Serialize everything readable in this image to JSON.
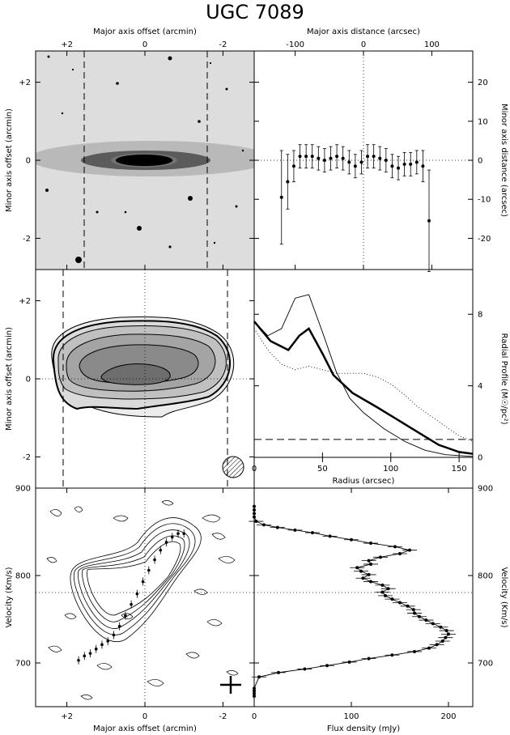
{
  "title": "UGC 7089",
  "chart_data": [
    {
      "id": "optical-image",
      "type": "image",
      "xlabel_top": "Major axis offset (arcmin)",
      "ylabel": "Minor axis offset (arcmin)",
      "xlim": [
        2.8,
        -2.8
      ],
      "ylim": [
        -2.8,
        2.8
      ],
      "x_ticks": [
        "+2",
        "0",
        "-2"
      ],
      "y_ticks": [
        "+2",
        "0",
        "-2"
      ],
      "slit_lines": [
        1.75,
        -1.6
      ]
    },
    {
      "id": "centroid-offsets",
      "type": "scatter",
      "xlabel_top": "Major axis distance (arcsec)",
      "ylabel": "Minor axis distance (arcsec)",
      "xlim": [
        -160,
        160
      ],
      "ylim": [
        -28,
        28
      ],
      "x_ticks": [
        "-100",
        "0",
        "100"
      ],
      "y_ticks": [
        "20",
        "10",
        "0",
        "-10",
        "-20"
      ],
      "x": [
        -120,
        -111,
        -102,
        -93,
        -84,
        -75,
        -66,
        -57,
        -48,
        -39,
        -30,
        -21,
        -12,
        -3,
        6,
        15,
        24,
        33,
        42,
        51,
        60,
        69,
        78,
        87,
        96
      ],
      "y": [
        -9.5,
        -5.5,
        -1.5,
        1,
        1,
        1,
        0.5,
        0,
        0.5,
        1,
        0.5,
        -0.5,
        -1.5,
        -0.5,
        1,
        1,
        0.5,
        0,
        -1.5,
        -2,
        -1,
        -1,
        -0.5,
        -1.5,
        -15.5
      ],
      "yerr": [
        12,
        7,
        4,
        3,
        3,
        3,
        3,
        3,
        3,
        3,
        3,
        3,
        3,
        3,
        3,
        3,
        3,
        3,
        3,
        3,
        3,
        3,
        3,
        4,
        13
      ]
    },
    {
      "id": "hi-contours",
      "type": "contour",
      "ylabel": "Minor axis offset (arcmin)",
      "xlim": [
        2.8,
        -2.8
      ],
      "ylim": [
        -2.8,
        2.8
      ],
      "y_ticks": [
        "+2",
        "0",
        "-2"
      ],
      "slit_lines": [
        2.1,
        -2.1
      ]
    },
    {
      "id": "radial-profile",
      "type": "line",
      "xlabel": "Radius (arcsec)",
      "ylabel": "Radial Profile (M☉/pc²)",
      "xlim": [
        0,
        160
      ],
      "ylim": [
        0,
        10.5
      ],
      "x_ticks": [
        "0",
        "50",
        "100",
        "150"
      ],
      "y_ticks": [
        "8",
        "4",
        "0"
      ],
      "series": [
        {
          "style": "thick",
          "x": [
            0,
            12,
            25,
            33,
            40,
            50,
            58,
            72,
            90,
            105,
            120,
            135,
            150,
            160
          ],
          "y": [
            7.6,
            6.5,
            6.0,
            6.8,
            7.2,
            5.8,
            4.6,
            3.6,
            2.8,
            2.1,
            1.4,
            0.7,
            0.3,
            0.2
          ]
        },
        {
          "style": "thin",
          "x": [
            0,
            10,
            20,
            30,
            40,
            50,
            60,
            70,
            80,
            95,
            110,
            125,
            140,
            160
          ],
          "y": [
            7.6,
            6.8,
            7.2,
            8.9,
            9.1,
            7.0,
            4.8,
            3.3,
            2.5,
            1.6,
            0.9,
            0.4,
            0.15,
            0.05
          ]
        },
        {
          "style": "dotted",
          "x": [
            0,
            10,
            20,
            30,
            40,
            50,
            60,
            70,
            80,
            90,
            100,
            110,
            120,
            135,
            150,
            160
          ],
          "y": [
            7.2,
            6.0,
            5.2,
            4.9,
            5.1,
            4.9,
            4.7,
            4.7,
            4.7,
            4.5,
            4.1,
            3.5,
            2.8,
            2.0,
            1.2,
            0.9
          ]
        },
        {
          "style": "dashed",
          "x": [
            0,
            160
          ],
          "y": [
            1.0,
            1.0
          ]
        }
      ]
    },
    {
      "id": "position-velocity",
      "type": "contour",
      "xlabel": "Major axis offset (arcmin)",
      "ylabel": "Velocity (Km/s)",
      "xlim": [
        2.8,
        -2.8
      ],
      "ylim": [
        650,
        900
      ],
      "x_ticks": [
        "+2",
        "0",
        "-2"
      ],
      "y_ticks": [
        "900",
        "800",
        "700"
      ],
      "x": [
        1.7,
        1.55,
        1.4,
        1.25,
        1.1,
        0.95,
        0.8,
        0.65,
        0.5,
        0.35,
        0.2,
        0.05,
        -0.1,
        -0.25,
        -0.4,
        -0.55,
        -0.7,
        -0.85,
        -1.0
      ],
      "y": [
        703,
        708,
        711,
        716,
        721,
        725,
        732,
        742,
        754,
        767,
        779,
        793,
        806,
        818,
        829,
        838,
        844,
        848,
        848
      ],
      "reference_velocity": 781
    },
    {
      "id": "global-profile",
      "type": "line",
      "xlabel": "Flux density (mJy)",
      "ylabel": "Velocity (Km/s)",
      "xlim": [
        0,
        225
      ],
      "ylim": [
        650,
        900
      ],
      "x_ticks": [
        "0",
        "100",
        "200"
      ],
      "y_ticks": [
        "900",
        "800",
        "700"
      ],
      "x": [
        0,
        0,
        0,
        0,
        5,
        25,
        52,
        75,
        98,
        118,
        142,
        165,
        180,
        188,
        194,
        197,
        200,
        198,
        192,
        184,
        177,
        170,
        165,
        164,
        158,
        150,
        142,
        135,
        132,
        138,
        132,
        120,
        112,
        118,
        110,
        106,
        120,
        118,
        130,
        150,
        160,
        145,
        120,
        100,
        78,
        60,
        42,
        24,
        10,
        2,
        0,
        0,
        0,
        0
      ],
      "y": [
        662,
        665,
        668,
        671,
        684,
        689,
        693,
        697,
        701,
        705,
        709,
        713,
        717,
        721,
        725,
        729,
        733,
        737,
        741,
        745,
        749,
        753,
        757,
        761,
        765,
        769,
        773,
        777,
        781,
        785,
        789,
        793,
        797,
        801,
        805,
        809,
        813,
        817,
        821,
        825,
        829,
        833,
        837,
        841,
        845,
        849,
        852,
        855,
        858,
        862,
        867,
        871,
        875,
        879
      ]
    }
  ],
  "left_labels": {
    "top_xlabel": "Major axis offset (arcmin)",
    "right_top_xlabel": "Major axis distance (arcsec)",
    "beam_icon": "hatched-circle-icon",
    "cross_icon": "resolution-cross-icon"
  }
}
